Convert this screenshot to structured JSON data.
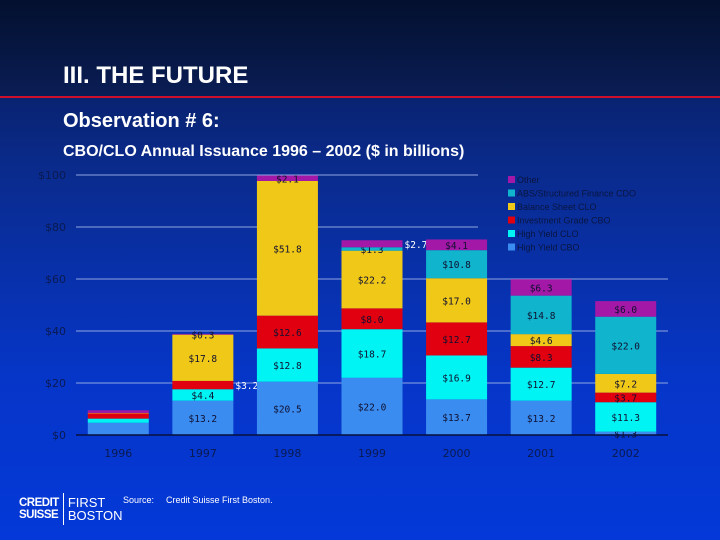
{
  "header": {
    "title": "III.  THE FUTURE",
    "observation": "Observation # 6:",
    "subtitle": "CBO/CLO Annual Issuance 1996 – 2002 ($ in billions)"
  },
  "footer": {
    "source_label": "Source:",
    "source_text": "Credit Suisse First Boston.",
    "logo_left": [
      "CREDIT",
      "SUISSE"
    ],
    "logo_right": [
      "FIRST",
      "BOSTON"
    ]
  },
  "chart_data": {
    "type": "bar",
    "stacked": true,
    "title": "CBO/CLO Annual Issuance 1996 – 2002 ($ in billions)",
    "categories": [
      "1996",
      "1997",
      "1998",
      "1999",
      "2000",
      "2001",
      "2002"
    ],
    "ylim": [
      0,
      100
    ],
    "yticks": [
      0,
      20,
      40,
      60,
      80,
      100
    ],
    "ytick_labels": [
      "$0",
      "$20",
      "$40",
      "$60",
      "$80",
      "$100"
    ],
    "grid": true,
    "legend": "top-right",
    "series": [
      {
        "name": "High Yield CBO",
        "color": "#3a8cf0",
        "values": [
          4.7,
          13.2,
          20.5,
          22.0,
          13.7,
          13.2,
          1.3
        ],
        "labels": [
          "",
          "$13.2",
          "$20.5",
          "$22.0",
          "$13.7",
          "$13.2",
          "$1.3"
        ]
      },
      {
        "name": "High Yield CLO",
        "color": "#00f4f4",
        "values": [
          1.6,
          4.4,
          12.8,
          18.7,
          16.9,
          12.7,
          11.3
        ],
        "labels": [
          "",
          "$4.4",
          "$12.8",
          "$18.7",
          "$16.9",
          "$12.7",
          "$11.3"
        ]
      },
      {
        "name": "Investment Grade CBO",
        "color": "#e00010",
        "values": [
          2.0,
          3.2,
          12.6,
          8.0,
          12.7,
          8.3,
          3.7
        ],
        "labels": [
          "",
          "$3.2",
          "$12.6",
          "$8.0",
          "$12.7",
          "$8.3",
          "$3.7"
        ]
      },
      {
        "name": "Balance Sheet CLO",
        "color": "#f0c818",
        "values": [
          0.2,
          17.8,
          51.8,
          22.2,
          17.0,
          4.6,
          7.2
        ],
        "labels": [
          "",
          "$17.8",
          "$51.8",
          "$22.2",
          "$17.0",
          "$4.6",
          "$7.2"
        ]
      },
      {
        "name": "ABS/Structured Finance CDO",
        "color": "#10b4cc",
        "values": [
          0,
          0,
          0,
          1.3,
          10.8,
          14.8,
          22.0
        ],
        "labels": [
          "",
          "",
          "",
          "$1.3",
          "$10.8",
          "$14.8",
          "$22.0"
        ]
      },
      {
        "name": "Other",
        "color": "#a418a8",
        "values": [
          1.0,
          0.3,
          2.1,
          2.7,
          4.1,
          6.3,
          6.0
        ],
        "labels": [
          "",
          "$0.3",
          "$2.1",
          "$2.7",
          "$4.1",
          "$6.3",
          "$6.0"
        ]
      }
    ]
  }
}
